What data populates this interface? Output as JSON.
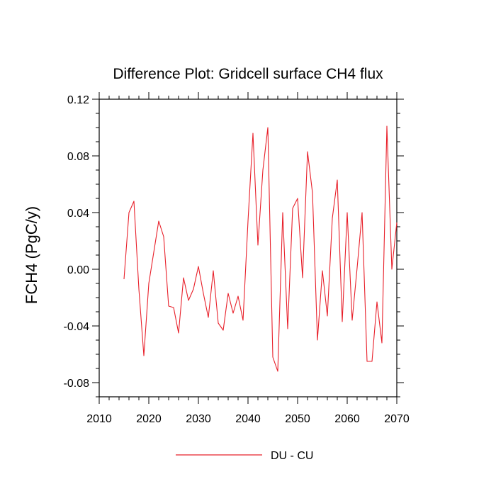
{
  "chart_data": {
    "type": "line",
    "title": "Difference Plot: Gridcell surface CH4 flux",
    "xlabel": "",
    "ylabel": "FCH4  (PgC/y)",
    "xlim": [
      2010,
      2070
    ],
    "ylim": [
      -0.09,
      0.12
    ],
    "xticks": [
      2010,
      2020,
      2030,
      2040,
      2050,
      2060,
      2070
    ],
    "xtick_labels": [
      "2010",
      "2020",
      "2030",
      "2040",
      "2050",
      "2060",
      "2070"
    ],
    "yticks": [
      -0.08,
      -0.04,
      0.0,
      0.04,
      0.08,
      0.12
    ],
    "ytick_labels": [
      "-0.08",
      "-0.04",
      "0.00",
      "0.04",
      "0.08",
      "0.12"
    ],
    "grid": false,
    "legend_position": "bottom",
    "series": [
      {
        "name": "DU - CU",
        "color": "#e8202a",
        "x": [
          2015,
          2016,
          2017,
          2018,
          2019,
          2020,
          2021,
          2022,
          2023,
          2024,
          2025,
          2026,
          2027,
          2028,
          2029,
          2030,
          2031,
          2032,
          2033,
          2034,
          2035,
          2036,
          2037,
          2038,
          2039,
          2040,
          2041,
          2042,
          2043,
          2044,
          2045,
          2046,
          2047,
          2048,
          2049,
          2050,
          2051,
          2052,
          2053,
          2054,
          2055,
          2056,
          2057,
          2058,
          2059,
          2060,
          2061,
          2062,
          2063,
          2064,
          2065,
          2066,
          2067,
          2068,
          2069,
          2070
        ],
        "values": [
          -0.007,
          0.04,
          0.048,
          -0.014,
          -0.061,
          -0.01,
          0.012,
          0.034,
          0.023,
          -0.026,
          -0.027,
          -0.045,
          -0.006,
          -0.022,
          -0.014,
          0.002,
          -0.017,
          -0.034,
          -0.001,
          -0.038,
          -0.043,
          -0.017,
          -0.031,
          -0.019,
          -0.036,
          0.034,
          0.096,
          0.017,
          0.07,
          0.1,
          -0.062,
          -0.072,
          0.04,
          -0.042,
          0.043,
          0.05,
          -0.006,
          0.083,
          0.054,
          -0.05,
          -0.001,
          -0.033,
          0.036,
          0.063,
          -0.037,
          0.04,
          -0.036,
          0.001,
          0.04,
          -0.065,
          -0.065,
          -0.023,
          -0.052,
          0.101,
          0.0,
          0.033
        ]
      }
    ]
  }
}
